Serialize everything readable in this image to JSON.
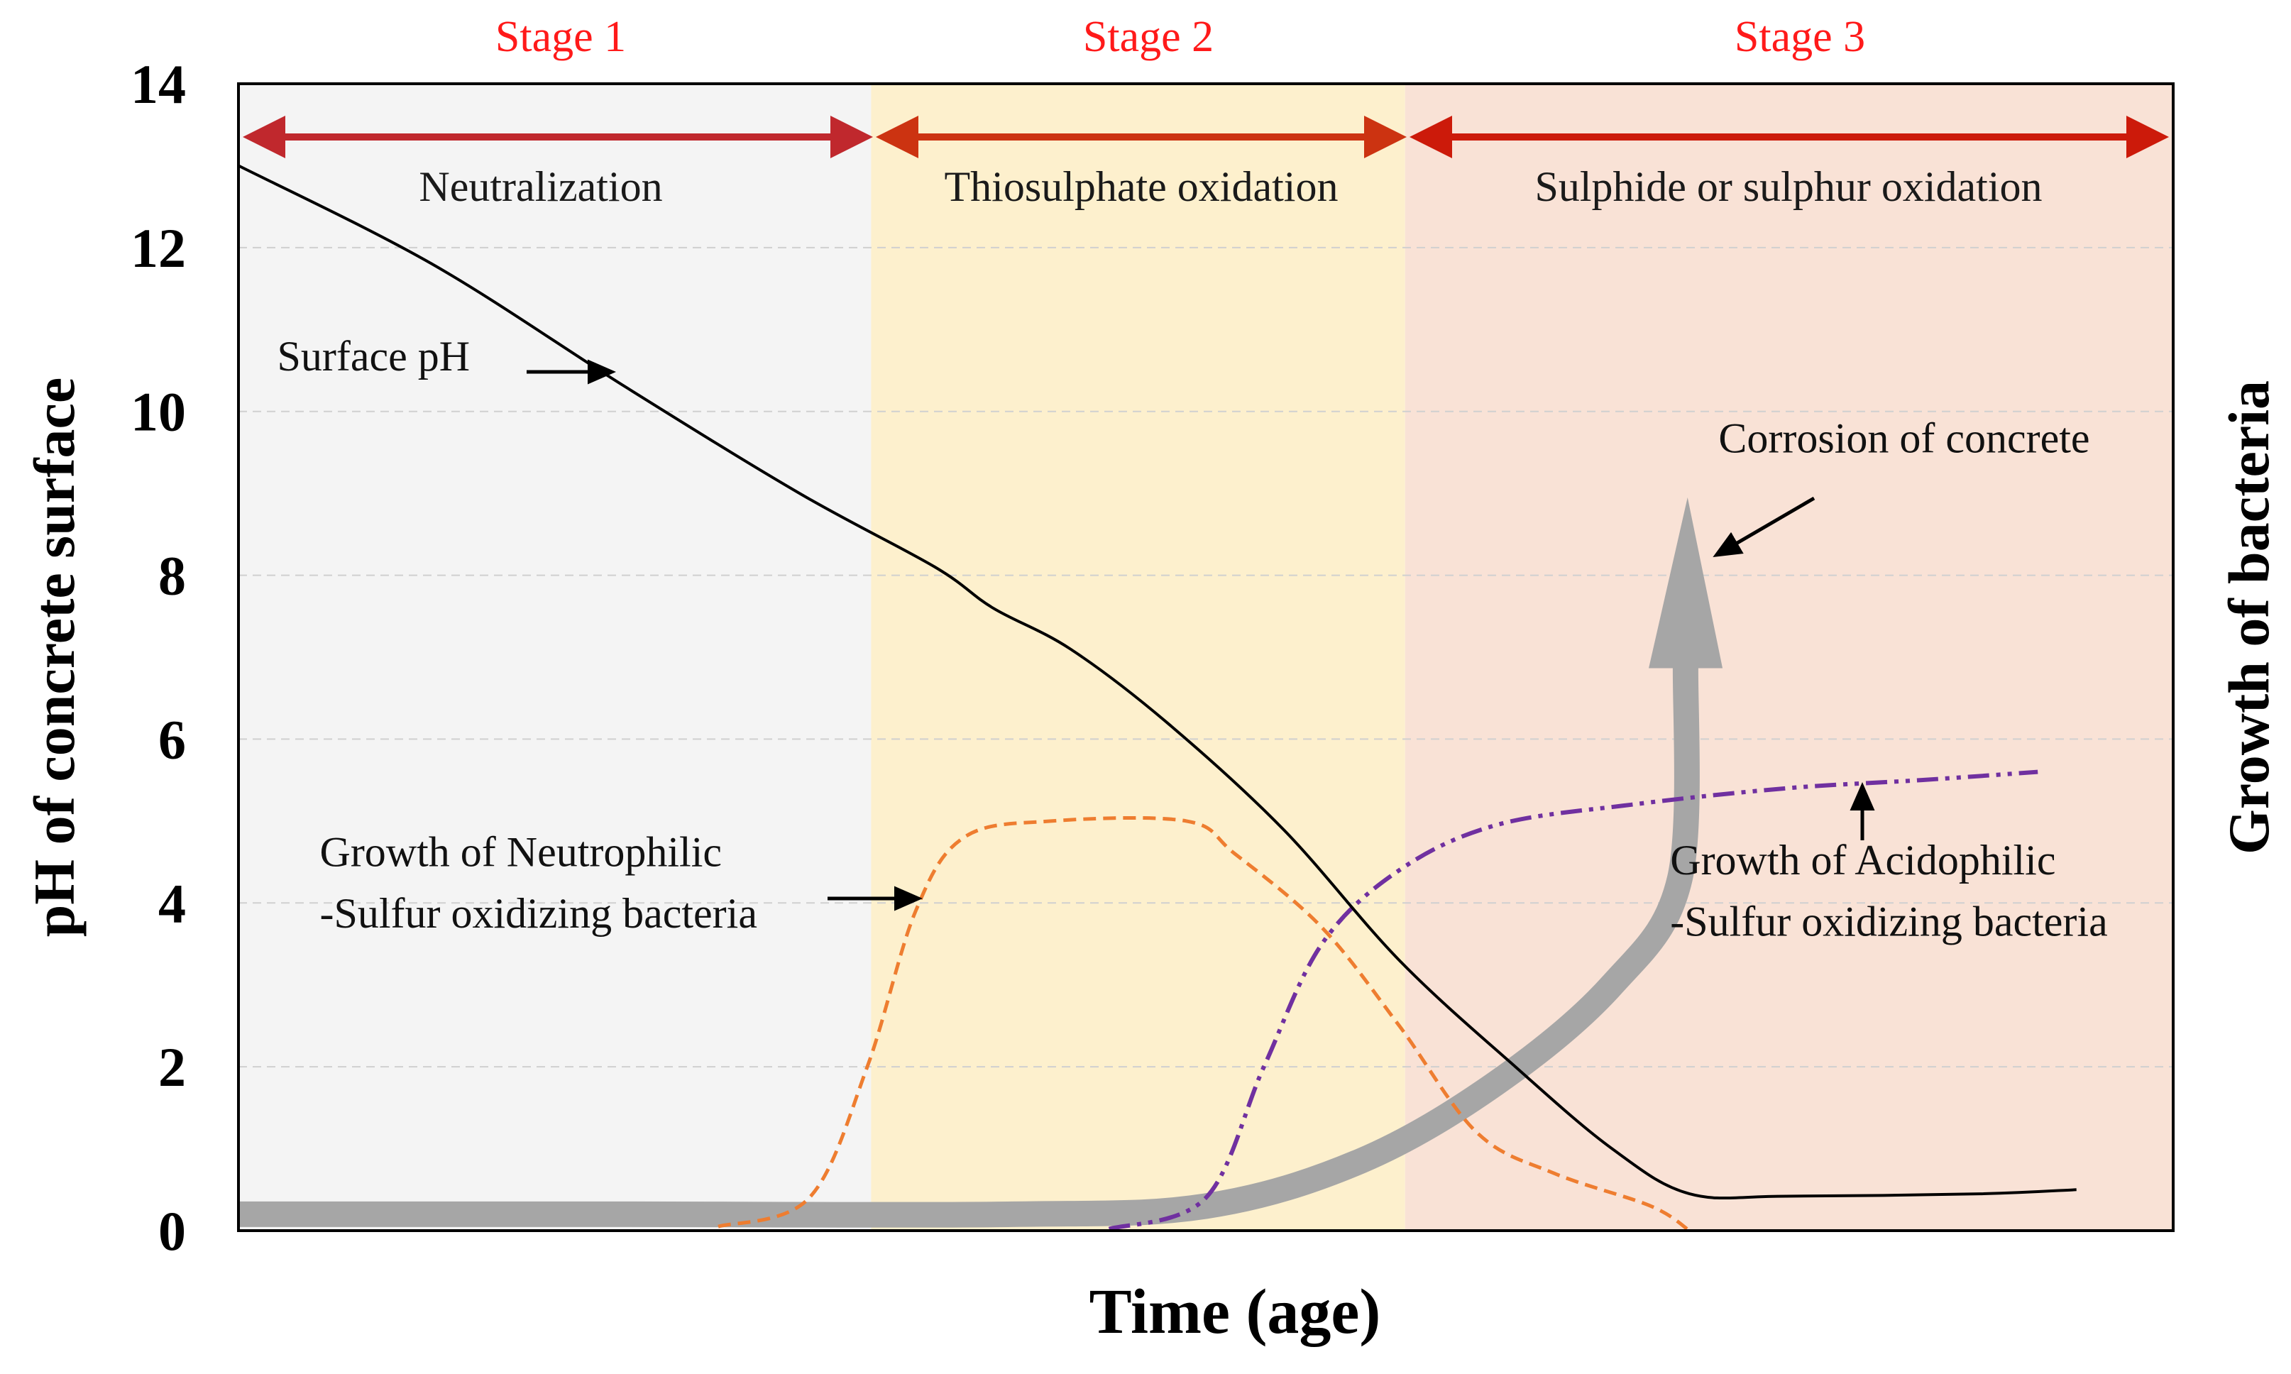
{
  "colors": {
    "stage1_bg": "#f4f4f4",
    "stage2_bg": "#fdf0cd",
    "stage3_bg": "#f9e2d6",
    "stage_title": "#ff1a1a",
    "arrow1": "#c0282d",
    "arrow2": "#cc3311",
    "arrow3": "#cc1a0a",
    "ph_line": "#000000",
    "neutrophilic": "#ee7d30",
    "acidophilic": "#7030a0",
    "corrosion": "#a6a6a6",
    "grid": "#d0d0d0"
  },
  "chart_data": {
    "type": "line",
    "title": "",
    "xlabel": "Time (age)",
    "ylabel": "pH of concrete surface",
    "y2label": "Growth of bacteria",
    "xlim": [
      0,
      10
    ],
    "ylim": [
      0,
      14
    ],
    "yticks": [
      0,
      2,
      4,
      6,
      8,
      10,
      12,
      14
    ],
    "grid": "horizontal dashed",
    "stages": [
      {
        "title": "Stage 1",
        "process": "Neutralization",
        "x_start": 0,
        "x_end": 3.27
      },
      {
        "title": "Stage 2",
        "process": "Thiosulphate oxidation",
        "x_start": 3.27,
        "x_end": 6.03
      },
      {
        "title": "Stage 3",
        "process": "Sulphide or sulphur oxidation",
        "x_start": 6.03,
        "x_end": 10
      }
    ],
    "series": [
      {
        "name": "Surface pH",
        "style": "solid",
        "points": [
          [
            0,
            13.0
          ],
          [
            1.0,
            11.8
          ],
          [
            2.0,
            10.3
          ],
          [
            2.9,
            9.0
          ],
          [
            3.6,
            8.1
          ],
          [
            3.9,
            7.6
          ],
          [
            4.3,
            7.1
          ],
          [
            4.8,
            6.2
          ],
          [
            5.4,
            4.9
          ],
          [
            6.0,
            3.3
          ],
          [
            6.6,
            2.0
          ],
          [
            7.1,
            1.0
          ],
          [
            7.5,
            0.45
          ],
          [
            8.0,
            0.42
          ],
          [
            9.0,
            0.45
          ],
          [
            9.5,
            0.5
          ]
        ]
      },
      {
        "name": "Growth of Neutrophilic -Sulfur oxidizing bacteria",
        "style": "dashed",
        "points": [
          [
            2.48,
            0.05
          ],
          [
            2.95,
            0.4
          ],
          [
            3.25,
            2.0
          ],
          [
            3.5,
            3.9
          ],
          [
            3.75,
            4.8
          ],
          [
            4.2,
            5.0
          ],
          [
            4.9,
            5.0
          ],
          [
            5.15,
            4.6
          ],
          [
            5.6,
            3.7
          ],
          [
            6.0,
            2.5
          ],
          [
            6.4,
            1.2
          ],
          [
            6.8,
            0.7
          ],
          [
            7.3,
            0.3
          ],
          [
            7.5,
            0.0
          ]
        ]
      },
      {
        "name": "Growth of Acidophilic -Sulfur oxidizing bacteria",
        "style": "dash-dot",
        "points": [
          [
            4.5,
            0.02
          ],
          [
            5.0,
            0.4
          ],
          [
            5.3,
            2.0
          ],
          [
            5.6,
            3.5
          ],
          [
            6.0,
            4.4
          ],
          [
            6.5,
            4.95
          ],
          [
            7.2,
            5.2
          ],
          [
            8.0,
            5.4
          ],
          [
            8.7,
            5.5
          ],
          [
            9.3,
            5.6
          ]
        ]
      },
      {
        "name": "Corrosion of concrete",
        "style": "thick arrow",
        "points": [
          [
            0,
            0.2
          ],
          [
            2.0,
            0.2
          ],
          [
            4.0,
            0.2
          ],
          [
            5.0,
            0.3
          ],
          [
            5.8,
            0.85
          ],
          [
            6.5,
            1.8
          ],
          [
            7.1,
            3.0
          ],
          [
            7.45,
            4.3
          ],
          [
            7.48,
            6.9
          ],
          [
            7.49,
            8.95
          ]
        ]
      }
    ],
    "annotations": [
      {
        "text": "Surface pH",
        "x": 0.2,
        "y": 10.5
      },
      {
        "text": "Corrosion of concrete",
        "x": 7.65,
        "y": 9.5
      },
      {
        "text": "Growth of Neutrophilic",
        "x": 0.42,
        "y": 4.45
      },
      {
        "text": "-Sulfur oxidizing bacteria",
        "x": 0.42,
        "y": 3.7
      },
      {
        "text": "Growth of Acidophilic",
        "x": 7.4,
        "y": 4.35
      },
      {
        "text": "-Sulfur oxidizing bacteria",
        "x": 7.4,
        "y": 3.6
      }
    ]
  }
}
